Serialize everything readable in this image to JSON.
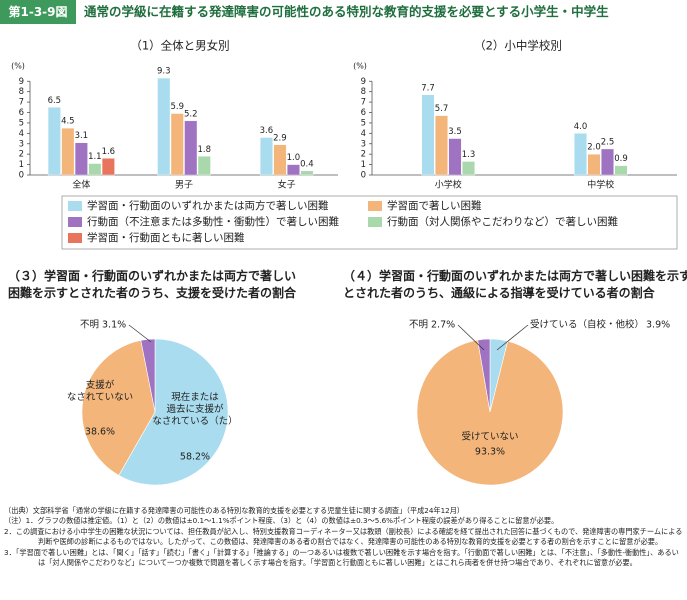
{
  "header": {
    "badge": "第1-3-9図",
    "title": "通常の学級に在籍する発達障害の可能性のある特別な教育的支援を必要とする小学生・中学生"
  },
  "chart_data": [
    {
      "type": "bar",
      "title": "（1）全体と男女別",
      "y_label": "(%)",
      "categories": [
        "全体",
        "男子",
        "女子"
      ],
      "ylim": [
        0,
        9.6
      ],
      "yticks": [
        0,
        1,
        2,
        3,
        4,
        5,
        6,
        7,
        8,
        9
      ],
      "series": [
        {
          "name": "学習面・行動面のいずれかまたは両方で著しい困難",
          "color": "#a9dcee",
          "values": [
            6.5,
            9.3,
            3.6
          ],
          "value_labels": [
            "6.5",
            "9.3",
            "3.6"
          ]
        },
        {
          "name": "学習面で著しい困難",
          "color": "#f3b57a",
          "values": [
            4.5,
            5.9,
            2.9
          ],
          "value_labels": [
            "4.5",
            "5.9",
            "2.9"
          ]
        },
        {
          "name": "行動面（不注意または多動性・衝動性）で著しい困難",
          "color": "#9f72c2",
          "values": [
            3.1,
            5.2,
            1.0
          ],
          "value_labels": [
            "3.1",
            "5.2",
            "1.0"
          ]
        },
        {
          "name": "行動面（対人関係やこだわりなど）で著しい困難",
          "color": "#a9d8ac",
          "values": [
            1.1,
            1.8,
            0.4
          ],
          "value_labels": [
            "1.1",
            "1.8",
            "0.4"
          ]
        },
        {
          "name": "学習面・行動面ともに著しい困難",
          "color": "#e8745c",
          "values": [
            1.6,
            null,
            null
          ],
          "value_labels": [
            "1.6",
            null,
            null
          ]
        }
      ]
    },
    {
      "type": "bar",
      "title": "（2）小中学校別",
      "y_label": "(%)",
      "categories": [
        "小学校",
        "中学校"
      ],
      "ylim": [
        0,
        9.6
      ],
      "yticks": [
        0,
        1,
        2,
        3,
        4,
        5,
        6,
        7,
        8,
        9
      ],
      "series": [
        {
          "color": "#a9dcee",
          "values": [
            7.7,
            4.0
          ],
          "value_labels": [
            "7.7",
            "4.0"
          ]
        },
        {
          "color": "#f3b57a",
          "values": [
            5.7,
            2.0
          ],
          "value_labels": [
            "5.7",
            "2.0"
          ]
        },
        {
          "color": "#9f72c2",
          "values": [
            3.5,
            2.5
          ],
          "value_labels": [
            "3.5",
            "2.5"
          ]
        },
        {
          "color": "#a9d8ac",
          "values": [
            1.3,
            0.9
          ],
          "value_labels": [
            "1.3",
            "0.9"
          ]
        }
      ]
    },
    {
      "type": "pie",
      "title": "（３）学習面・行動面のいずれかまたは両方で著しい\n困難を示すとされた者のうち、支援を受けた者の割合",
      "categories": [
        "現在または\n過去に支援が\nなされている（た）",
        "支援が\nなされていない",
        "不明"
      ],
      "values": [
        58.2,
        38.6,
        3.1
      ],
      "value_labels": [
        "58.2%",
        "38.6%",
        "3.1%"
      ],
      "colors": [
        "#a9dcee",
        "#f3b57a",
        "#9f72c2"
      ]
    },
    {
      "type": "pie",
      "title": "（４）学習面・行動面のいずれかまたは両方で著しい困難を示す\nとされた者のうち、通級による指導を受けている者の割合",
      "categories": [
        "受けている（自校・他校）",
        "受けていない",
        "不明"
      ],
      "values": [
        3.9,
        93.3,
        2.7
      ],
      "value_labels": [
        "3.9%",
        "93.3%",
        "2.7%"
      ],
      "colors": [
        "#a9dcee",
        "#f3b57a",
        "#9f72c2"
      ]
    }
  ],
  "notes": [
    "（出典）文部科学省「通常の学級に在籍する発達障害の可能性のある特別な教育的支援を必要とする児童生徒に関する調査」（平成24年12月）",
    "（注）1．グラフの数値は推定値。（1）と（2）の数値は±0.1～1.1%ポイント程度、（3）と（4）の数値は±0.3～5.6%ポイント程度の誤差があり得ることに留意が必要。",
    "2．この調査における小中学生の困難な状況については、担任教員が記入し、特別支援教育コーディネーター又は教頭（副校長）による確認を経て提出された回答に基づくもので、発達障害の専門家チームによる判断や医師の診断によるものではない。したがって、この数値は、発達障害のある者の割合ではなく、発達障害の可能性のある特別な教育的支援を必要とする者の割合を示すことに留意が必要。",
    "3．「学習面で著しい困難」とは、「聞く」「話す」「読む」「書く」「計算する」「推論する」の一つあるいは複数で著しい困難を示す場合を指す。「行動面で著しい困難」とは、「不注意」、「多動性-衝動性」、あるいは「対人関係やこだわりなど」について一つか複数で問題を著しく示す場合を指す。「学習面と行動面ともに著しい困難」とはこれら両者を併せ持つ場合であり、それぞれに留意が必要。"
  ]
}
